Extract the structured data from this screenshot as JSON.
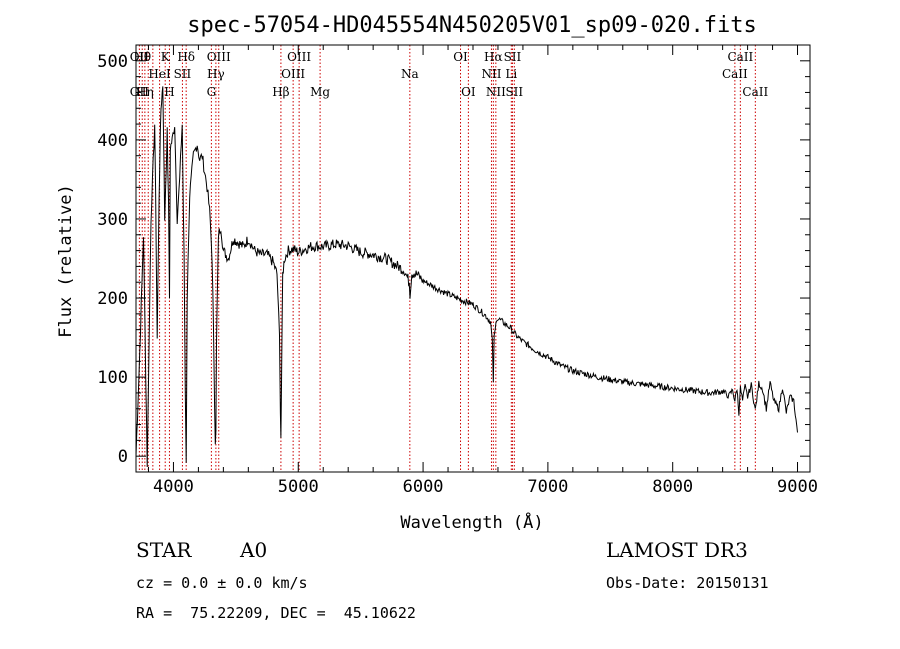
{
  "chart_data": {
    "type": "line",
    "title": "spec-57054-HD045554N450205V01_sp09-020.fits",
    "xlabel": "Wavelength (Å)",
    "ylabel": "Flux (relative)",
    "xlim": [
      3700,
      9100
    ],
    "ylim": [
      -20,
      520
    ],
    "xticks": [
      4000,
      5000,
      6000,
      7000,
      8000,
      9000
    ],
    "yticks": [
      0,
      100,
      200,
      300,
      400,
      500
    ],
    "line_color": "#000000",
    "marker_color": "#cc0000",
    "spectrum": {
      "name": "flux",
      "x": [
        3700,
        3730,
        3760,
        3790,
        3820,
        3850,
        3870,
        3885,
        3900,
        3915,
        3930,
        3950,
        3960,
        3968,
        3975,
        3990,
        4010,
        4030,
        4050,
        4070,
        4085,
        4095,
        4102,
        4110,
        4130,
        4160,
        4190,
        4210,
        4230,
        4250,
        4270,
        4290,
        4310,
        4325,
        4335,
        4340,
        4345,
        4360,
        4380,
        4400,
        4440,
        4480,
        4520,
        4560,
        4600,
        4650,
        4700,
        4750,
        4800,
        4830,
        4850,
        4857,
        4861,
        4866,
        4875,
        4890,
        4920,
        4960,
        5000,
        5050,
        5100,
        5150,
        5200,
        5300,
        5400,
        5500,
        5600,
        5700,
        5800,
        5850,
        5890,
        5895,
        5910,
        5950,
        6000,
        6100,
        6200,
        6300,
        6400,
        6450,
        6500,
        6540,
        6555,
        6563,
        6570,
        6590,
        6620,
        6650,
        6700,
        6750,
        6800,
        6900,
        7000,
        7100,
        7200,
        7300,
        7400,
        7500,
        7600,
        7700,
        7800,
        7900,
        8000,
        8100,
        8200,
        8300,
        8400,
        8450,
        8480,
        8498,
        8515,
        8530,
        8542,
        8560,
        8580,
        8600,
        8630,
        8662,
        8690,
        8720,
        8750,
        8780,
        8810,
        8850,
        8880,
        8910,
        8940,
        8970,
        9000
      ],
      "y": [
        0,
        130,
        280,
        -10,
        300,
        420,
        150,
        330,
        440,
        470,
        300,
        410,
        320,
        200,
        390,
        400,
        420,
        300,
        350,
        420,
        250,
        80,
        -5,
        200,
        330,
        380,
        395,
        375,
        380,
        360,
        340,
        310,
        250,
        120,
        20,
        30,
        140,
        280,
        290,
        260,
        250,
        275,
        270,
        265,
        275,
        260,
        255,
        255,
        245,
        230,
        150,
        60,
        25,
        90,
        230,
        250,
        260,
        262,
        258,
        262,
        265,
        266,
        265,
        268,
        266,
        258,
        255,
        250,
        240,
        235,
        220,
        205,
        232,
        230,
        222,
        213,
        205,
        198,
        192,
        185,
        178,
        170,
        145,
        95,
        150,
        175,
        172,
        168,
        162,
        152,
        145,
        134,
        125,
        115,
        108,
        104,
        100,
        97,
        94,
        92,
        90,
        88,
        86,
        84,
        82,
        80,
        82,
        76,
        84,
        70,
        86,
        55,
        86,
        70,
        88,
        75,
        90,
        58,
        92,
        85,
        60,
        93,
        70,
        60,
        88,
        55,
        75,
        70,
        30
      ]
    },
    "line_markers": [
      {
        "wl": 3727,
        "top": "OII",
        "mid": "",
        "bot": "OII"
      },
      {
        "wl": 3750,
        "top": "Hθ",
        "mid": "",
        "bot": ""
      },
      {
        "wl": 3771,
        "top": "",
        "mid": "",
        "bot": "Hη"
      },
      {
        "wl": 3798,
        "top": "",
        "mid": "",
        "bot": ""
      },
      {
        "wl": 3835,
        "top": "",
        "mid": "",
        "bot": ""
      },
      {
        "wl": 3889,
        "top": "",
        "mid": "HeI",
        "bot": ""
      },
      {
        "wl": 3934,
        "top": "K",
        "mid": "",
        "bot": ""
      },
      {
        "wl": 3968,
        "top": "",
        "mid": "",
        "bot": "H"
      },
      {
        "wl": 4072,
        "top": "",
        "mid": "SII",
        "bot": ""
      },
      {
        "wl": 4102,
        "top": "Hδ",
        "mid": "",
        "bot": ""
      },
      {
        "wl": 4304,
        "top": "",
        "mid": "",
        "bot": "G"
      },
      {
        "wl": 4340,
        "top": "",
        "mid": "Hγ",
        "bot": ""
      },
      {
        "wl": 4363,
        "top": "OIII",
        "mid": "",
        "bot": ""
      },
      {
        "wl": 4861,
        "top": "",
        "mid": "",
        "bot": "Hβ"
      },
      {
        "wl": 4959,
        "top": "",
        "mid": "OIII",
        "bot": ""
      },
      {
        "wl": 5007,
        "top": "OIII",
        "mid": "",
        "bot": ""
      },
      {
        "wl": 5175,
        "top": "",
        "mid": "",
        "bot": "Mg"
      },
      {
        "wl": 5894,
        "top": "",
        "mid": "Na",
        "bot": ""
      },
      {
        "wl": 6300,
        "top": "OI",
        "mid": "",
        "bot": ""
      },
      {
        "wl": 6363,
        "top": "",
        "mid": "",
        "bot": "OI"
      },
      {
        "wl": 6548,
        "top": "",
        "mid": "NII",
        "bot": ""
      },
      {
        "wl": 6563,
        "top": "Hα",
        "mid": "",
        "bot": ""
      },
      {
        "wl": 6583,
        "top": "",
        "mid": "",
        "bot": "NII"
      },
      {
        "wl": 6707,
        "top": "",
        "mid": "Li",
        "bot": ""
      },
      {
        "wl": 6716,
        "top": "SII",
        "mid": "",
        "bot": ""
      },
      {
        "wl": 6731,
        "top": "",
        "mid": "",
        "bot": "SII"
      },
      {
        "wl": 8498,
        "top": "",
        "mid": "CaII",
        "bot": ""
      },
      {
        "wl": 8542,
        "top": "CaII",
        "mid": "",
        "bot": ""
      },
      {
        "wl": 8662,
        "top": "",
        "mid": "",
        "bot": "CaII"
      }
    ]
  },
  "info": {
    "class": "STAR",
    "subclass": "A0",
    "survey": "LAMOST DR3",
    "cz": "cz = 0.0 ± 0.0 km/s",
    "obs_date": "Obs-Date: 20150131",
    "radec": "RA =  75.22209, DEC =  45.10622"
  }
}
